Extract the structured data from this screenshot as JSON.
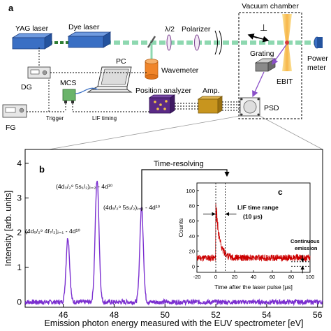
{
  "panels": {
    "a": "a",
    "b": "b",
    "c": "c"
  },
  "setup": {
    "vacuum_chamber": "Vacuum chamber",
    "yag_laser": "YAG laser",
    "dye_laser": "Dye laser",
    "half_wave": "λ/2",
    "polarizer": "Polarizer",
    "perp": "⊥",
    "grating": "Grating",
    "power_meter_1": "Power",
    "power_meter_2": "meter",
    "ebit": "EBIT",
    "wavemeter": "Wavemeter",
    "pc": "PC",
    "dg": "DG",
    "mcs": "MCS",
    "position_analyzer": "Position analyzer",
    "amp": "Amp.",
    "psd": "PSD",
    "fg": "FG",
    "trigger": "Trigger",
    "lif_timing": "LIF timing",
    "colors": {
      "laser_blue": "#3a6fc4",
      "beam_green": "#8ed8b0",
      "dark_green_beam": "#2e7d32",
      "wavemeter_orange": "#f0852a",
      "analyzer_purple": "#5b2a86",
      "amp_gold": "#c8951e",
      "ebit_yellow": "#f7c948",
      "arrow_purple": "#8a4fc8"
    }
  },
  "chart_data": [
    {
      "type": "line",
      "panel": "b",
      "xlabel": "Emission photon energy measured with the EUV spectrometer [eV]",
      "ylabel": "Intensity [arb. units]",
      "xlim": [
        44.5,
        56.2
      ],
      "ylim": [
        -0.15,
        4.4
      ],
      "xticks": [
        46,
        48,
        50,
        52,
        54,
        56
      ],
      "yticks": [
        0,
        1,
        2,
        3,
        4
      ],
      "color": "#7b2fd0",
      "peaks": [
        {
          "center": 46.18,
          "height": 1.85,
          "width": 0.07
        },
        {
          "center": 47.33,
          "height": 3.52,
          "width": 0.075
        },
        {
          "center": 49.08,
          "height": 2.72,
          "width": 0.07
        }
      ],
      "baseline": 0.0,
      "annotations": {
        "time_resolving": "Time-resolving",
        "peak1": "(4d₅/₂⁹ 4f₇/₂)ⱼ₌₁ - 4d¹⁰",
        "peak2": "(4d₃/₂⁹ 5s₁/₂)ⱼ₌₂ - 4d¹⁰",
        "peak3": "(4d₅/₂⁹ 5s₁/₂)ⱼ₌₂ - 4d¹⁰"
      }
    },
    {
      "type": "line",
      "panel": "c",
      "xlabel": "Time after the laser pulse [μs]",
      "ylabel": "Counts",
      "xlim": [
        -20,
        100
      ],
      "ylim": [
        -8,
        110
      ],
      "xticks": [
        -20,
        0,
        20,
        40,
        60,
        80,
        100
      ],
      "yticks": [
        0,
        20,
        40,
        60,
        80,
        100
      ],
      "color": "#cc0000",
      "baseline": 11,
      "peak_time": 0,
      "peak_value": 82,
      "decay_time": 4,
      "lif_window": [
        0,
        10
      ],
      "continuous_level": [
        0,
        6
      ],
      "annotations": {
        "lif_time_range_1": "LIF time range",
        "lif_time_range_2": "(10 μs)",
        "continuous_1": "Continuous",
        "continuous_2": "emission"
      }
    }
  ]
}
